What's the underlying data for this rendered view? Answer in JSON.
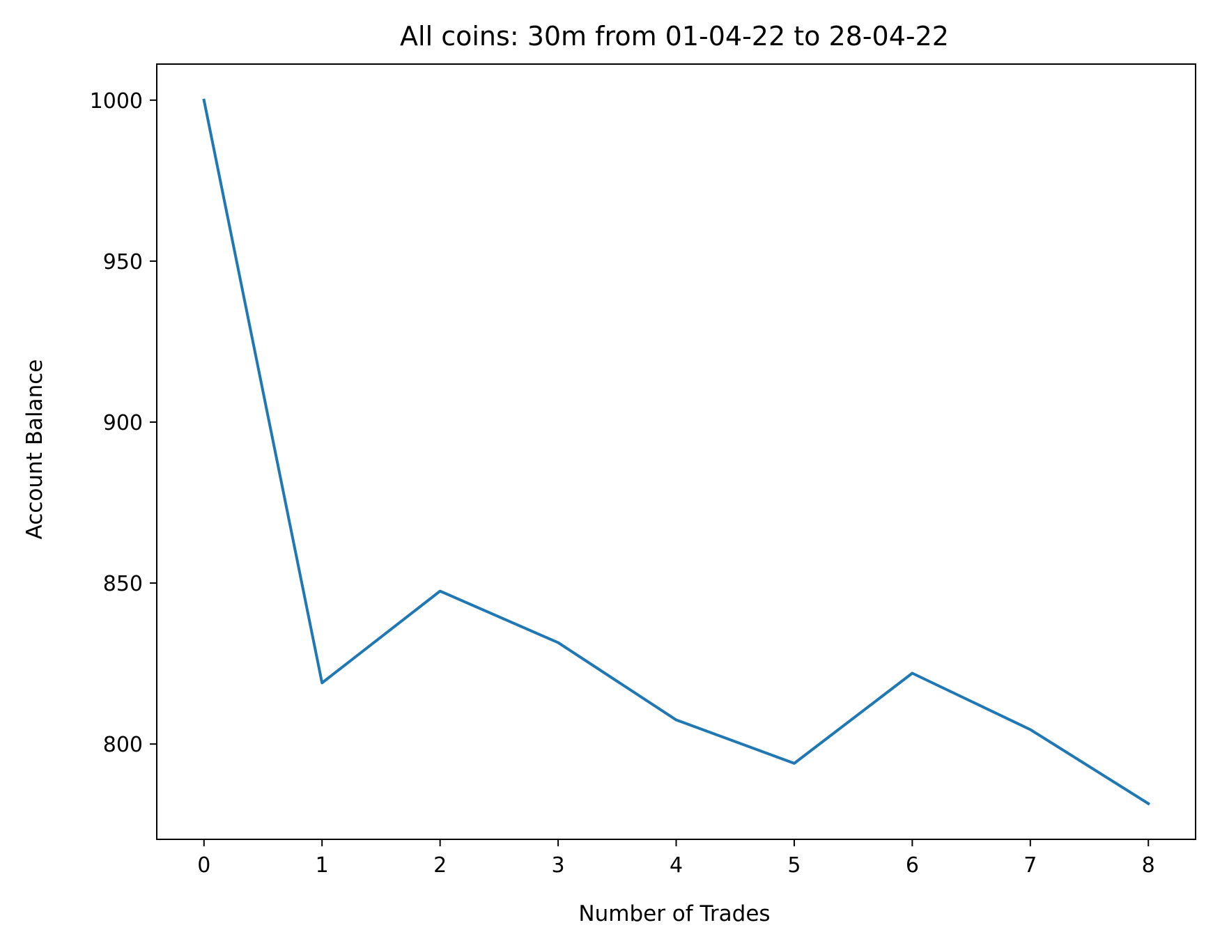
{
  "chart_data": {
    "type": "line",
    "title": "All coins: 30m from 01-04-22 to 28-04-22",
    "xlabel": "Number of Trades",
    "ylabel": "Account Balance",
    "x": [
      0,
      1,
      2,
      3,
      4,
      5,
      6,
      7,
      8
    ],
    "series": [
      {
        "values": [
          1000,
          819,
          847.5,
          831.5,
          807.5,
          794,
          822,
          804.5,
          781.5
        ]
      }
    ],
    "xticks": [
      0,
      1,
      2,
      3,
      4,
      5,
      6,
      7,
      8
    ],
    "yticks": [
      800,
      850,
      900,
      950,
      1000
    ],
    "xlim": [
      -0.4,
      8.4
    ],
    "ylim": [
      770.4,
      1011.2
    ],
    "grid": false,
    "line_color": "#1f77b4",
    "axis_color": "#000000"
  }
}
